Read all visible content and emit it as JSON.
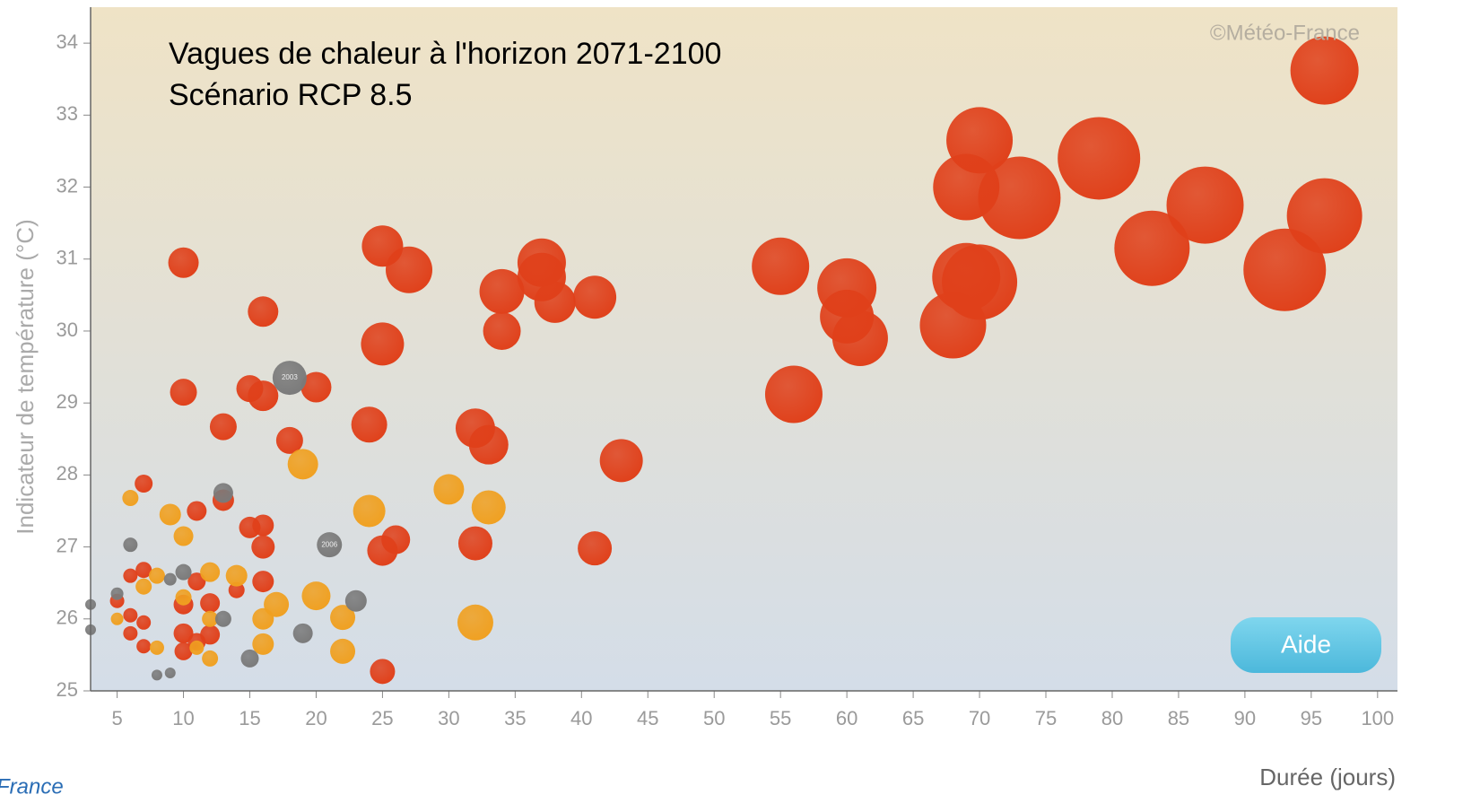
{
  "chart_data": {
    "type": "bubble",
    "title": "Vagues de chaleur à l'horizon 2071-2100",
    "subtitle": "Scénario RCP 8.5",
    "credit": "©Météo-France",
    "button": "Aide",
    "footer": "France",
    "xlabel": "Durée (jours)",
    "ylabel": "Indicateur de température (°C)",
    "xlim": [
      3,
      101.5
    ],
    "ylim": [
      25,
      34.5
    ],
    "xticks": [
      5,
      10,
      15,
      20,
      25,
      30,
      35,
      40,
      45,
      50,
      55,
      60,
      65,
      70,
      75,
      80,
      85,
      90,
      95,
      100
    ],
    "yticks": [
      25,
      26,
      27,
      28,
      29,
      30,
      31,
      32,
      33,
      34
    ],
    "series": [
      {
        "color": "#e0401a",
        "x": [
          10,
          16,
          10,
          15,
          16,
          20,
          13,
          18,
          7,
          13,
          11,
          15,
          16,
          16,
          7,
          6,
          11,
          16,
          14,
          5,
          6,
          10,
          12,
          7,
          6,
          7,
          10,
          11,
          12,
          10,
          25,
          25,
          27,
          25,
          24,
          34,
          37,
          38,
          37,
          41,
          34,
          32,
          33,
          43,
          32,
          26,
          25,
          41,
          55,
          60,
          60,
          61,
          56,
          69,
          70,
          73,
          79,
          69,
          70,
          68,
          87,
          83,
          93,
          96,
          96
        ],
        "values": [
          30.95,
          30.27,
          29.15,
          29.2,
          29.1,
          29.22,
          28.67,
          28.48,
          27.88,
          27.65,
          27.5,
          27.27,
          27.3,
          27.0,
          26.68,
          26.6,
          26.52,
          26.52,
          26.4,
          26.25,
          26.05,
          26.2,
          26.22,
          25.95,
          25.8,
          25.62,
          25.8,
          25.68,
          25.78,
          25.55,
          25.27,
          31.18,
          30.85,
          29.82,
          28.7,
          30.55,
          30.95,
          30.4,
          30.75,
          30.47,
          30.0,
          28.65,
          28.42,
          28.2,
          27.05,
          27.1,
          26.95,
          26.98,
          30.9,
          30.2,
          30.6,
          29.9,
          29.12,
          32.0,
          32.65,
          31.85,
          32.4,
          30.75,
          30.68,
          30.08,
          31.75,
          31.15,
          30.85,
          31.6,
          33.62
        ],
        "sizes": [
          17,
          17,
          15,
          15,
          17,
          17,
          15,
          15,
          10,
          12,
          11,
          12,
          12,
          13,
          9,
          8,
          10,
          12,
          9,
          8,
          8,
          11,
          11,
          8,
          8,
          8,
          11,
          10,
          11,
          10,
          14,
          23,
          26,
          24,
          20,
          25,
          27,
          23,
          27,
          24,
          21,
          22,
          22,
          24,
          19,
          16,
          17,
          19,
          32,
          30,
          33,
          31,
          32,
          37,
          37,
          46,
          46,
          38,
          42,
          37,
          43,
          42,
          46,
          42,
          38
        ]
      },
      {
        "color": "#f0a020",
        "x": [
          6,
          9,
          10,
          8,
          12,
          14,
          7,
          10,
          12,
          5,
          8,
          11,
          12,
          16,
          17,
          16,
          20,
          22,
          22,
          19,
          24,
          30,
          33,
          32
        ],
        "values": [
          27.68,
          27.45,
          27.15,
          26.6,
          26.65,
          26.6,
          26.45,
          26.3,
          26.0,
          26.0,
          25.6,
          25.6,
          25.45,
          26.0,
          26.2,
          25.65,
          26.32,
          26.02,
          25.55,
          28.15,
          27.5,
          27.8,
          27.55,
          25.95
        ],
        "sizes": [
          9,
          12,
          11,
          9,
          11,
          12,
          9,
          9,
          9,
          7,
          8,
          8,
          9,
          12,
          14,
          12,
          16,
          14,
          14,
          17,
          18,
          17,
          19,
          20
        ]
      },
      {
        "color": "#7a7a7a",
        "x": [
          18,
          21,
          13,
          6,
          23,
          19,
          15,
          13,
          10,
          9,
          8,
          9,
          3,
          3,
          5
        ],
        "values": [
          29.35,
          27.03,
          27.75,
          27.03,
          26.25,
          25.8,
          25.45,
          26.0,
          26.65,
          26.55,
          25.22,
          25.25,
          26.2,
          25.85,
          26.35
        ],
        "sizes": [
          19,
          14,
          11,
          8,
          12,
          11,
          10,
          9,
          9,
          7,
          6,
          6,
          6,
          6,
          7
        ],
        "labels": [
          "2003",
          "2006",
          null,
          null,
          null,
          null,
          null,
          null,
          null,
          null,
          null,
          null,
          null,
          null,
          null
        ]
      }
    ]
  }
}
